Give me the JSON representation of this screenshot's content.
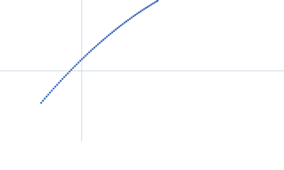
{
  "chart_data": {
    "type": "scatter",
    "color": "#3b68b8",
    "xlim": [
      -115,
      285
    ],
    "ylim": [
      -100,
      100
    ],
    "x": [
      -57,
      -54.5,
      -52,
      -49.5,
      -47,
      -44.5,
      -42,
      -39.5,
      -37,
      -34.5,
      -32,
      -29.5,
      -27,
      -24.5,
      -22,
      -19.5,
      -17,
      -14.5,
      -12,
      -9.5,
      -7,
      -4.5,
      -2,
      0.5,
      3,
      5.5,
      8,
      10.5,
      13,
      15.5,
      18,
      20.5,
      23,
      25.5,
      28,
      30.5,
      33,
      35.5,
      38,
      40.5,
      43,
      45.5,
      48,
      50.5,
      53,
      55.5,
      58,
      60.5,
      63,
      65.5,
      68,
      70.5,
      73,
      75.5,
      78,
      80.5,
      83,
      85.5,
      88,
      90.5,
      93,
      95.5,
      98,
      100.5,
      103,
      105.5,
      107
    ],
    "y": [
      -45.1,
      -42.2,
      -39.2,
      -36.3,
      -33.5,
      -30.7,
      -27.9,
      -25.0,
      -22.3,
      -19.6,
      -16.9,
      -14.2,
      -11.4,
      -8.8,
      -6.2,
      -3.6,
      -1.0,
      1.6,
      4.1,
      6.6,
      9.1,
      11.6,
      14.1,
      16.5,
      18.9,
      21.2,
      23.6,
      26.0,
      28.3,
      30.6,
      32.8,
      35.0,
      37.3,
      39.5,
      41.7,
      43.8,
      45.9,
      48.1,
      50.2,
      52.2,
      54.3,
      56.3,
      58.3,
      60.3,
      62.2,
      64.1,
      66.0,
      68.0,
      69.8,
      71.6,
      73.4,
      75.2,
      77.1,
      78.8,
      80.5,
      82.2,
      83.8,
      85.6,
      87.2,
      88.8,
      90.3,
      91.9,
      93.5,
      95.0,
      96.5,
      98.0,
      99.0
    ]
  }
}
